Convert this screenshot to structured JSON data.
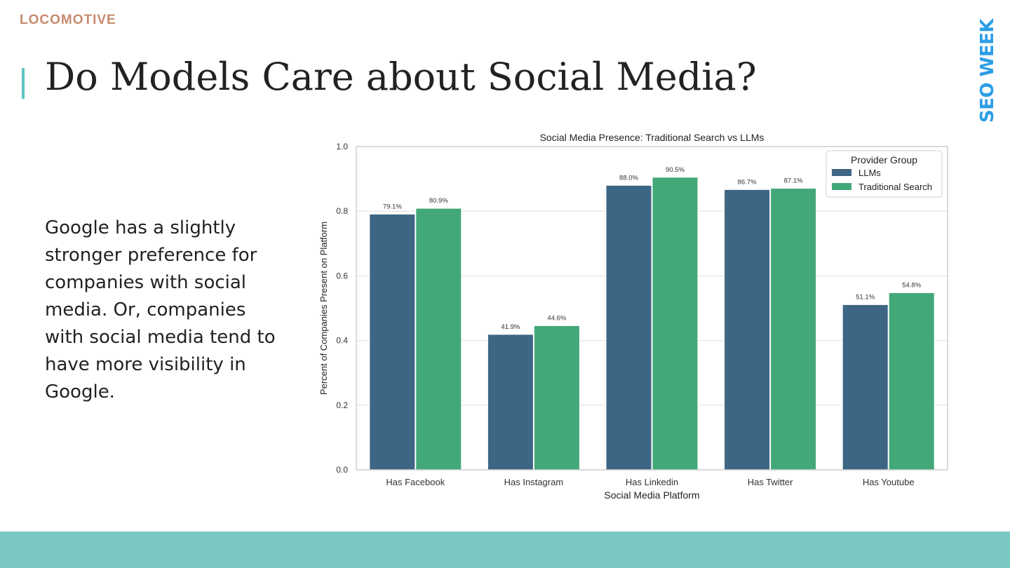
{
  "brand": {
    "logo_text": "LOCOMOTIVE",
    "event_label": "SEO WEEK",
    "accent_color": "#5fc4c2",
    "event_color": "#2d9ee6",
    "footer_color": "#79c9c2"
  },
  "slide": {
    "title": "Do Models Care about Social Media?",
    "body": "Google has a slightly stronger preference for companies with social media. Or, companies with social media tend to have more visibility in Google."
  },
  "chart_data": {
    "type": "bar",
    "title": "Social Media Presence: Traditional Search vs LLMs",
    "xlabel": "Social Media Platform",
    "ylabel": "Percent of Companies Present on Platform",
    "ylim": [
      0,
      1.0
    ],
    "yticks": [
      "0.0",
      "0.2",
      "0.4",
      "0.6",
      "0.8",
      "1.0"
    ],
    "grid": true,
    "categories": [
      "Has Facebook",
      "Has Instagram",
      "Has Linkedin",
      "Has Twitter",
      "Has Youtube"
    ],
    "legend": {
      "title": "Provider Group",
      "position": "top-right"
    },
    "series": [
      {
        "name": "LLMs",
        "color": "#3d6584",
        "values": [
          0.791,
          0.419,
          0.88,
          0.867,
          0.511
        ],
        "labels": [
          "79.1%",
          "41.9%",
          "88.0%",
          "86.7%",
          "51.1%"
        ]
      },
      {
        "name": "Traditional Search",
        "color": "#43a878",
        "values": [
          0.809,
          0.446,
          0.905,
          0.871,
          0.548
        ],
        "labels": [
          "80.9%",
          "44.6%",
          "90.5%",
          "87.1%",
          "54.8%"
        ]
      }
    ]
  }
}
